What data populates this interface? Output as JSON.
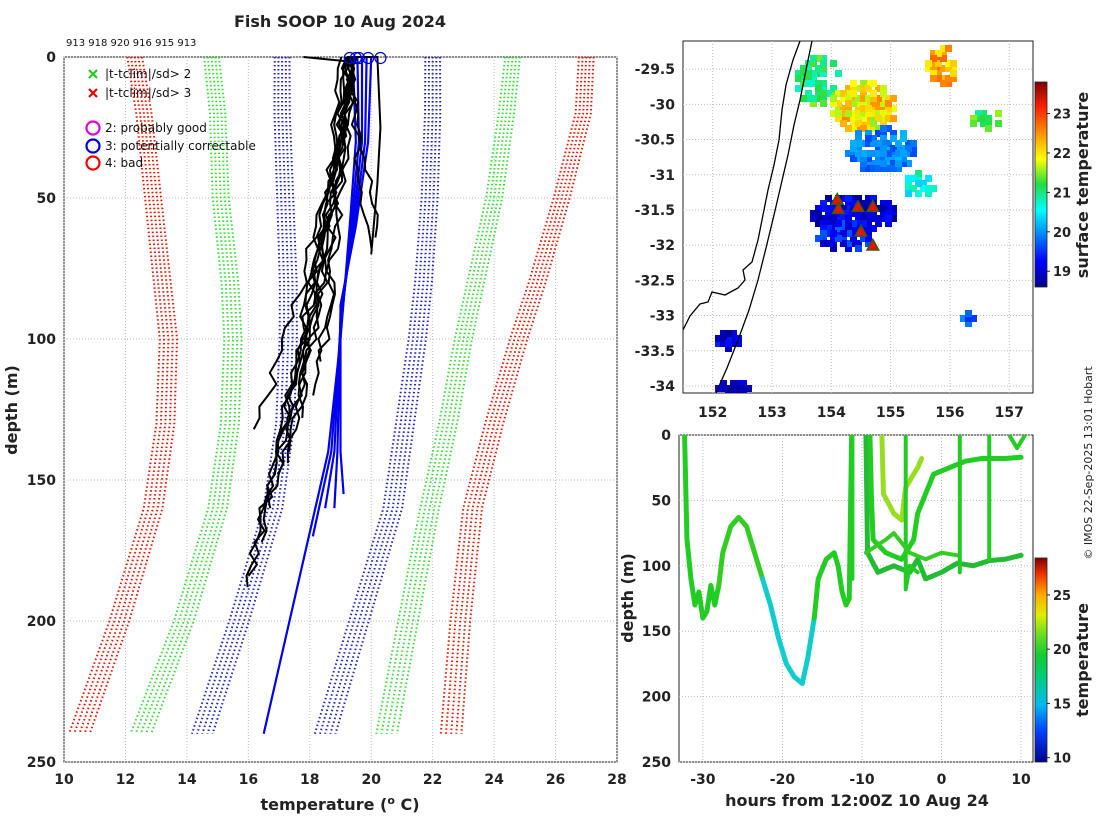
{
  "colors": {
    "clim_inner": "#33dd33",
    "clim_outer": "#ee1100",
    "prior": "#2222cc",
    "profile": "#000000",
    "flag_good": "#dd00dd",
    "flag_correctable": "#0000dd",
    "flag_bad": "#ee0000"
  },
  "title": "Fish SOOP 10 Aug 2024",
  "ids_label": "913 918 920 916 915 913",
  "watermark": "© IMOS 22-Sep-2025 13:01 Hobart",
  "chart_data": [
    {
      "type": "line",
      "name": "profile-panel",
      "xlabel": "temperature (",
      "xlabel_sup": "o",
      "xlabel_tail": " C)",
      "ylabel": "depth (m)",
      "xlim": [
        10,
        28
      ],
      "ylim": [
        250,
        0
      ],
      "xticks": [
        "10",
        "12",
        "14",
        "16",
        "18",
        "20",
        "22",
        "24",
        "26",
        "28"
      ],
      "yticks": [
        "0",
        "50",
        "100",
        "150",
        "200",
        "250"
      ],
      "legend": [
        {
          "marker": "x",
          "color": "#22cc22",
          "label": "|t-tclim|/sd> 2"
        },
        {
          "marker": "x",
          "color": "#ee0000",
          "label": "|t-tclim|/sd> 3"
        },
        {
          "marker": "o",
          "color": "#dd00dd",
          "label": "2: probably good"
        },
        {
          "marker": "o",
          "color": "#0000dd",
          "label": "3: potentially correctable"
        },
        {
          "marker": "o",
          "color": "#ee0000",
          "label": "4: bad"
        }
      ],
      "series": [
        {
          "name": "clim-3sd-low",
          "style": "dotted",
          "color": "#ee1100",
          "depth": [
            0,
            20,
            50,
            80,
            100,
            130,
            160,
            200,
            240
          ],
          "temp": [
            12.3,
            12.6,
            12.9,
            13.2,
            13.4,
            13.3,
            12.9,
            11.8,
            10.5
          ]
        },
        {
          "name": "clim-2sd-low",
          "style": "dotted",
          "color": "#33dd33",
          "depth": [
            0,
            20,
            50,
            80,
            100,
            130,
            160,
            200,
            240
          ],
          "temp": [
            14.8,
            15.0,
            15.1,
            15.4,
            15.5,
            15.4,
            15.0,
            13.9,
            12.5
          ]
        },
        {
          "name": "clim-mean-low",
          "style": "dotted",
          "color": "#2222cc",
          "depth": [
            0,
            20,
            50,
            80,
            100,
            130,
            160,
            200,
            240
          ],
          "temp": [
            17.1,
            17.1,
            17.2,
            17.3,
            17.3,
            17.2,
            16.8,
            15.7,
            14.5
          ]
        },
        {
          "name": "clim-mean-high",
          "style": "dotted",
          "color": "#2222cc",
          "depth": [
            0,
            20,
            50,
            80,
            100,
            130,
            160,
            200,
            240
          ],
          "temp": [
            22.0,
            22.0,
            21.9,
            21.7,
            21.5,
            21.1,
            20.7,
            19.6,
            18.5
          ]
        },
        {
          "name": "clim-2sd-high",
          "style": "dotted",
          "color": "#33dd33",
          "depth": [
            0,
            20,
            50,
            80,
            100,
            130,
            160,
            200,
            240
          ],
          "temp": [
            24.6,
            24.4,
            24.0,
            23.4,
            23.0,
            22.5,
            21.9,
            21.2,
            20.5
          ]
        },
        {
          "name": "clim-3sd-high",
          "style": "dotted",
          "color": "#ee1100",
          "depth": [
            0,
            20,
            50,
            80,
            100,
            130,
            160,
            200,
            240
          ],
          "temp": [
            27.0,
            26.9,
            26.2,
            25.4,
            24.8,
            24.0,
            23.3,
            22.9,
            22.6
          ]
        },
        {
          "name": "prior-profiles",
          "style": "solid",
          "color": "#0000ee",
          "depth": [
            0,
            30,
            60,
            100,
            140,
            170,
            240
          ],
          "temp": [
            20.0,
            19.9,
            19.6,
            19.1,
            18.5,
            18.1,
            16.5
          ]
        },
        {
          "name": "observed-profiles",
          "style": "solid",
          "color": "#000000",
          "depth": [
            0,
            20,
            40,
            60,
            80,
            100,
            120,
            140,
            160,
            180,
            190
          ],
          "temp": [
            19.3,
            19.2,
            19.0,
            18.9,
            18.7,
            18.4,
            18.0,
            17.5,
            16.5,
            16.0,
            15.9
          ]
        }
      ]
    },
    {
      "type": "heatmap",
      "name": "map-panel",
      "xlim": [
        151.5,
        157.4
      ],
      "ylim": [
        -34.1,
        -29.1
      ],
      "xticks": [
        "152",
        "153",
        "154",
        "155",
        "156",
        "157"
      ],
      "yticks": [
        "-29.5",
        "-30",
        "-30.5",
        "-31",
        "-31.5",
        "-32",
        "-32.5",
        "-33",
        "-33.5",
        "-34"
      ],
      "colorbar_label": "surface temperature",
      "colorbar_ticks": [
        "19",
        "20",
        "21",
        "22",
        "23"
      ],
      "clim": [
        18.6,
        23.8
      ],
      "stations": [
        {
          "lon": 154.1,
          "lat": -31.35
        },
        {
          "lon": 154.12,
          "lat": -31.48
        },
        {
          "lon": 154.45,
          "lat": -31.45
        },
        {
          "lon": 154.7,
          "lat": -31.45
        },
        {
          "lon": 154.5,
          "lat": -31.8
        },
        {
          "lon": 154.7,
          "lat": -32.0
        }
      ]
    },
    {
      "type": "scatter",
      "name": "time-depth-panel",
      "xlabel": "hours from 12:00Z 10 Aug 24",
      "ylabel": "depth (m)",
      "xlim": [
        -33,
        11.5
      ],
      "ylim": [
        250,
        0
      ],
      "xticks": [
        "-30",
        "-20",
        "-10",
        "0",
        "10"
      ],
      "yticks": [
        "0",
        "50",
        "100",
        "150",
        "200",
        "250"
      ],
      "colorbar_label": "temperature",
      "colorbar_ticks": [
        "10",
        "15",
        "20",
        "25"
      ],
      "clim": [
        9.6,
        28.4
      ]
    }
  ]
}
